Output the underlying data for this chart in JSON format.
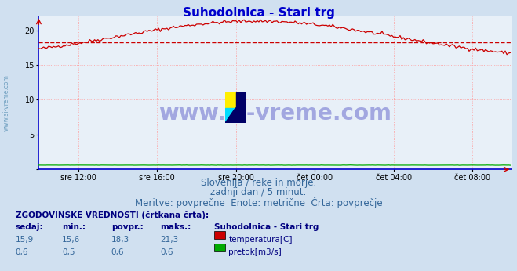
{
  "title": "Suhodolnica - Stari trg",
  "title_color": "#0000cc",
  "title_fontsize": 11,
  "bg_color": "#d0e0f0",
  "plot_bg_color": "#e8f0f8",
  "grid_color": "#ff9999",
  "grid_style": ":",
  "yticks": [
    0,
    5,
    10,
    15,
    20
  ],
  "ylim": [
    0,
    22
  ],
  "xlim": [
    0,
    288
  ],
  "x_tick_positions": [
    24,
    72,
    120,
    168,
    216,
    264
  ],
  "x_tick_labels": [
    "sre 12:00",
    "sre 16:00",
    "sre 20:00",
    "čet 00:00",
    "čet 04:00",
    "čet 08:00"
  ],
  "subtitle1": "Slovenija / reke in morje.",
  "subtitle2": "zadnji dan / 5 minut.",
  "subtitle3": "Meritve: povprečne  Enote: metrične  Črta: povprečje",
  "subtitle_color": "#336699",
  "subtitle_fontsize": 8.5,
  "legend_title": "Suhodolnica - Stari trg",
  "legend_entries": [
    "temperatura[C]",
    "pretok[m3/s]"
  ],
  "legend_colors": [
    "#cc0000",
    "#00aa00"
  ],
  "stats_label": "ZGODOVINSKE VREDNOSTI (črtkana črta):",
  "stats_headers": [
    "sedaj:",
    "min.:",
    "povpr.:",
    "maks.:"
  ],
  "stats_temp": [
    "15,9",
    "15,6",
    "18,3",
    "21,3"
  ],
  "stats_flow": [
    "0,6",
    "0,5",
    "0,6",
    "0,6"
  ],
  "avg_temp": 18.3,
  "watermark_text": "www.si-vreme.com",
  "left_label": "www.si-vreme.com",
  "temp_color": "#cc0000",
  "flow_color": "#00aa00",
  "border_color": "#0000cc",
  "axis_color": "#0000cc"
}
